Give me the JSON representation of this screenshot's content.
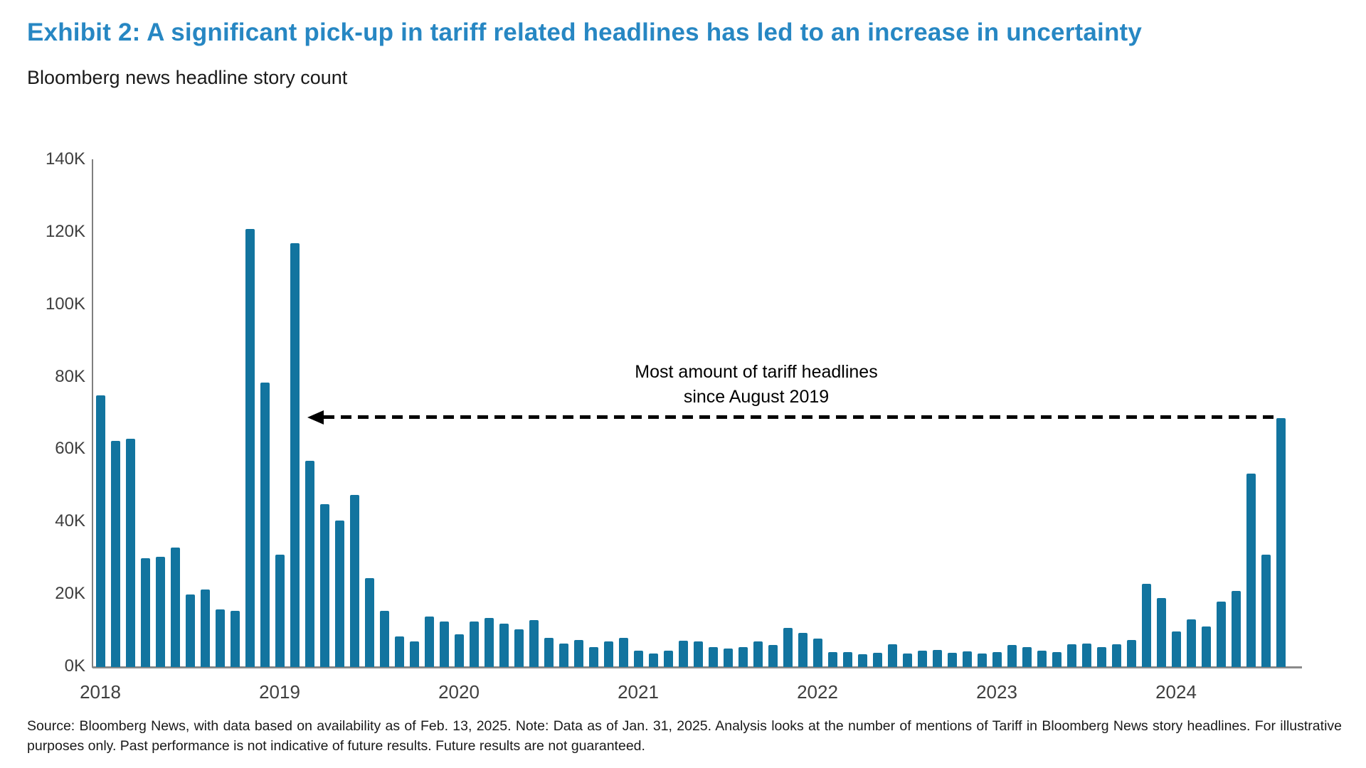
{
  "header": {
    "title": "Exhibit 2: A significant pick-up in tariff related headlines has led to an increase in uncertainty",
    "subtitle": "Bloomberg news headline story count"
  },
  "annotation": {
    "line1": "Most amount of tariff headlines",
    "line2": "since August 2019"
  },
  "source": {
    "text": "Source: Bloomberg News, with data based on availability as of Feb. 13, 2025. Note: Data as of Jan. 31, 2025. Analysis looks at the number of mentions of Tariff in Bloomberg News story headlines. For illustrative purposes only. Past performance is not indicative of future results. Future results are not guaranteed."
  },
  "colors": {
    "bar": "#12749F",
    "title": "#2787C3",
    "axis_text": "#3f3f3f",
    "axis_line": "#8a8a8a",
    "annotation_arrow": "#000000"
  },
  "chart_data": {
    "type": "bar",
    "title": "Bloomberg news headline story count",
    "xlabel": "",
    "ylabel": "Bloomberg news headline story count",
    "x_frequency": "monthly",
    "x_start_year": 2018,
    "year_labels": [
      "2018",
      "2019",
      "2020",
      "2021",
      "2022",
      "2023",
      "2024"
    ],
    "y_ticks_bottom_up": [
      "0K",
      "20K",
      "40K",
      "60K",
      "80K",
      "100K",
      "120K",
      "140K"
    ],
    "ylim_thousands": [
      0,
      140
    ],
    "grid": false,
    "legend": false,
    "values_thousands": [
      75,
      62.5,
      63,
      30,
      30.5,
      33,
      20,
      21.5,
      16,
      15.5,
      121,
      78.5,
      31,
      117,
      57,
      45,
      40.5,
      47.5,
      24.5,
      15.5,
      8.5,
      7,
      14,
      12.5,
      9,
      12.5,
      13.5,
      12,
      10.5,
      13,
      8,
      6.5,
      7.5,
      5.5,
      7,
      8,
      4.5,
      3.7,
      4.6,
      7.2,
      7,
      5.4,
      5.2,
      5.4,
      7,
      6,
      10.8,
      9.5,
      7.8,
      4.2,
      4.1,
      3.5,
      4,
      6.3,
      3.8,
      4.6,
      4.8,
      4,
      4.4,
      3.8,
      4.2,
      6,
      5.5,
      4.5,
      4.2,
      6.2,
      6.5,
      5.5,
      6.2,
      7.5,
      23,
      19,
      9.8,
      13.1,
      11.1,
      18,
      21,
      53.5,
      31,
      68.8
    ],
    "annotation": "Most amount of tariff headlines since August 2019",
    "annotation_arrow_level_thousands": 68.8
  }
}
